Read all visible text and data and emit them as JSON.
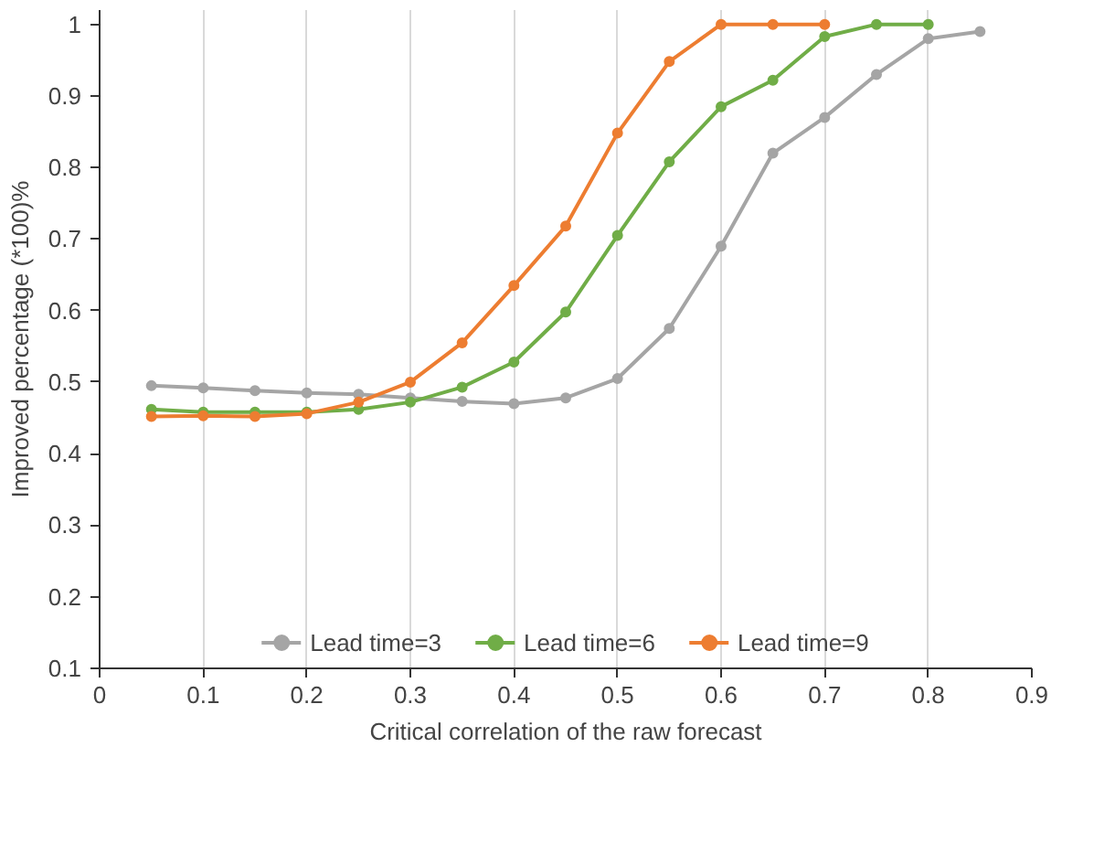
{
  "chart_data": {
    "type": "line",
    "xlabel": "Critical correlation of the raw forecast",
    "ylabel": "Improved percentage (*100)%",
    "xlim": [
      0,
      0.9
    ],
    "xticks": [
      0,
      0.1,
      0.2,
      0.3,
      0.4,
      0.5,
      0.6,
      0.7,
      0.8,
      0.9
    ],
    "ylim": [
      0.1,
      1.02
    ],
    "yticks": [
      0.1,
      0.2,
      0.3,
      0.4,
      0.5,
      0.6,
      0.7,
      0.8,
      0.9,
      1
    ],
    "grid": "x",
    "legend": "bottom",
    "marker": "circle",
    "line_style": "solid",
    "series": [
      {
        "name": "Lead time=3",
        "color": "#a5a5a5",
        "x": [
          0.05,
          0.1,
          0.15,
          0.2,
          0.25,
          0.3,
          0.35,
          0.4,
          0.45,
          0.5,
          0.55,
          0.6,
          0.65,
          0.7,
          0.75,
          0.8,
          0.85
        ],
        "values": [
          0.495,
          0.492,
          0.488,
          0.485,
          0.483,
          0.478,
          0.473,
          0.47,
          0.478,
          0.505,
          0.575,
          0.69,
          0.82,
          0.87,
          0.93,
          0.98,
          0.99
        ]
      },
      {
        "name": "Lead time=6",
        "color": "#70ad47",
        "x": [
          0.05,
          0.1,
          0.15,
          0.2,
          0.25,
          0.3,
          0.35,
          0.4,
          0.45,
          0.5,
          0.55,
          0.6,
          0.65,
          0.7,
          0.75,
          0.8
        ],
        "values": [
          0.462,
          0.458,
          0.458,
          0.458,
          0.462,
          0.472,
          0.493,
          0.528,
          0.598,
          0.705,
          0.808,
          0.885,
          0.922,
          0.983,
          1.0,
          1.0
        ]
      },
      {
        "name": "Lead time=9",
        "color": "#ed7d31",
        "x": [
          0.05,
          0.1,
          0.15,
          0.2,
          0.25,
          0.3,
          0.35,
          0.4,
          0.45,
          0.5,
          0.55,
          0.6,
          0.65,
          0.7
        ],
        "values": [
          0.452,
          0.453,
          0.452,
          0.456,
          0.472,
          0.5,
          0.555,
          0.635,
          0.718,
          0.848,
          0.948,
          1.0,
          1.0,
          1.0
        ]
      }
    ]
  }
}
